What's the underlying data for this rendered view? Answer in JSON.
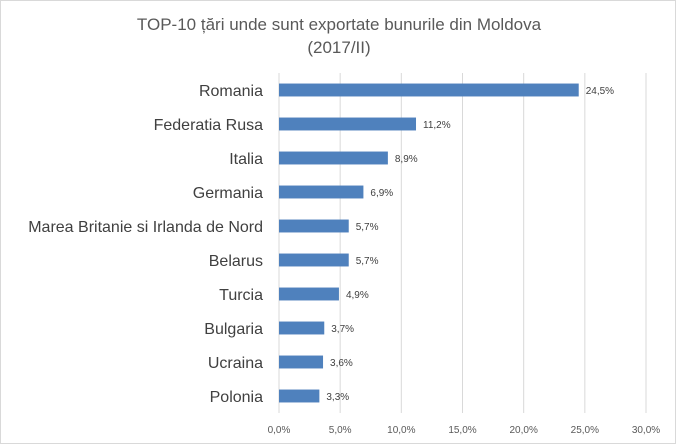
{
  "chart_data": {
    "type": "bar",
    "orientation": "horizontal",
    "title": "TOP-10 țări unde sunt exportate bunurile din Moldova",
    "subtitle": "(2017/II)",
    "categories": [
      "Romania",
      "Federatia Rusa",
      "Italia",
      "Germania",
      "Marea Britanie si Irlanda de Nord",
      "Belarus",
      "Turcia",
      "Bulgaria",
      "Ucraina",
      "Polonia"
    ],
    "values": [
      24.5,
      11.2,
      8.9,
      6.9,
      5.7,
      5.7,
      4.9,
      3.7,
      3.6,
      3.3
    ],
    "data_labels": [
      "24,5%",
      "11,2%",
      "8,9%",
      "6,9%",
      "5,7%",
      "5,7%",
      "4,9%",
      "3,7%",
      "3,6%",
      "3,3%"
    ],
    "xticks": [
      0,
      5,
      10,
      15,
      20,
      25,
      30
    ],
    "xtick_labels": [
      "0,0%",
      "5,0%",
      "10,0%",
      "15,0%",
      "20,0%",
      "25,0%",
      "30,0%"
    ],
    "xlim": [
      0,
      30
    ],
    "grid": true,
    "bar_color": "#4f81bd",
    "xlabel": "",
    "ylabel": ""
  }
}
